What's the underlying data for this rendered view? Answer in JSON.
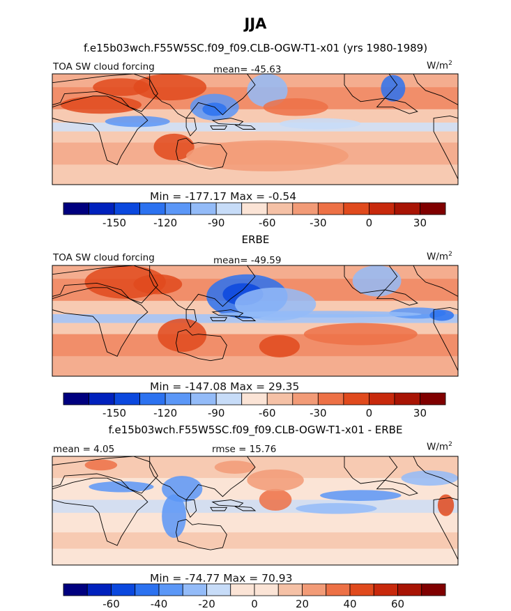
{
  "figure": {
    "title": "JJA",
    "unit_label": "W/m",
    "unit_sup": "2"
  },
  "colors": {
    "palette": [
      "#00007f",
      "#0021bd",
      "#0b48de",
      "#2c72f0",
      "#5b97f7",
      "#93bbf8",
      "#c7dcf8",
      "#fbe4d6",
      "#f5c1a6",
      "#f29b77",
      "#ed7146",
      "#e04a1d",
      "#c8290c",
      "#a81404",
      "#800000"
    ]
  },
  "chart_data": [
    {
      "type": "heatmap",
      "subtitle": "f.e15b03wch.F55W5SC.f09_f09.CLB-OGW-T1-x01 (yrs 1980-1989)",
      "left_label": "TOA SW cloud forcing",
      "stat_label": "mean= -45.63",
      "minmax": "Min = -177.17 Max =  -0.54",
      "min": -177.17,
      "max": -0.54,
      "mean": -45.63,
      "levels": [
        -180,
        -165,
        -150,
        -135,
        -120,
        -105,
        -90,
        -75,
        -60,
        -45,
        -30,
        -15,
        0,
        15,
        30,
        45
      ],
      "tick_labels": [
        "-150",
        "-120",
        "-90",
        "-60",
        "-30",
        "0",
        "30"
      ],
      "tick_values": [
        -150,
        -120,
        -90,
        -60,
        -30,
        0,
        30
      ]
    },
    {
      "type": "heatmap",
      "subtitle": "ERBE",
      "left_label": "TOA SW cloud forcing",
      "stat_label": "mean= -49.59",
      "minmax": "Min = -147.08 Max =  29.35",
      "min": -147.08,
      "max": 29.35,
      "mean": -49.59,
      "levels": [
        -180,
        -165,
        -150,
        -135,
        -120,
        -105,
        -90,
        -75,
        -60,
        -45,
        -30,
        -15,
        0,
        15,
        30,
        45
      ],
      "tick_labels": [
        "-150",
        "-120",
        "-90",
        "-60",
        "-30",
        "0",
        "30"
      ],
      "tick_values": [
        -150,
        -120,
        -90,
        -60,
        -30,
        0,
        30
      ]
    },
    {
      "type": "heatmap",
      "subtitle": "f.e15b03wch.F55W5SC.f09_f09.CLB-OGW-T1-x01 - ERBE",
      "left_label": "mean =  4.05",
      "stat_label": "rmse =  15.76",
      "minmax": "Min = -74.77 Max =  70.93",
      "min": -74.77,
      "max": 70.93,
      "mean": 4.05,
      "rmse": 15.76,
      "levels": [
        -80,
        -70,
        -60,
        -50,
        -40,
        -30,
        -20,
        -10,
        0,
        10,
        20,
        30,
        40,
        50,
        60,
        70,
        80
      ],
      "tick_labels": [
        "-60",
        "-40",
        "-20",
        "0",
        "20",
        "40",
        "60"
      ],
      "tick_values": [
        -60,
        -40,
        -20,
        0,
        20,
        40,
        60
      ]
    }
  ]
}
